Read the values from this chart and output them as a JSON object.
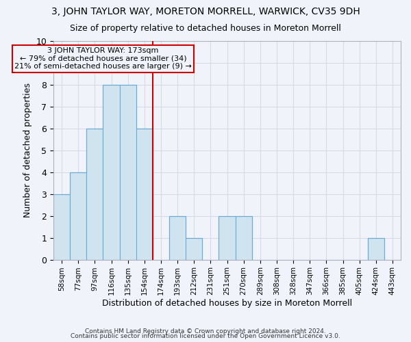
{
  "title1": "3, JOHN TAYLOR WAY, MORETON MORRELL, WARWICK, CV35 9DH",
  "title2": "Size of property relative to detached houses in Moreton Morrell",
  "xlabel": "Distribution of detached houses by size in Moreton Morrell",
  "ylabel": "Number of detached properties",
  "categories": [
    "58sqm",
    "77sqm",
    "97sqm",
    "116sqm",
    "135sqm",
    "154sqm",
    "174sqm",
    "193sqm",
    "212sqm",
    "231sqm",
    "251sqm",
    "270sqm",
    "289sqm",
    "308sqm",
    "328sqm",
    "347sqm",
    "366sqm",
    "385sqm",
    "405sqm",
    "424sqm",
    "443sqm"
  ],
  "values": [
    3,
    4,
    6,
    8,
    8,
    6,
    0,
    2,
    1,
    0,
    2,
    2,
    0,
    0,
    0,
    0,
    0,
    0,
    0,
    1,
    0
  ],
  "bar_color": "#d0e4f0",
  "bar_edge_color": "#6aaad4",
  "vline_index": 6,
  "vline_color": "#cc0000",
  "annotation_line1": "3 JOHN TAYLOR WAY: 173sqm",
  "annotation_line2": "← 79% of detached houses are smaller (34)",
  "annotation_line3": "21% of semi-detached houses are larger (9) →",
  "annotation_box_color": "#cc0000",
  "ylim": [
    0,
    10
  ],
  "yticks": [
    0,
    1,
    2,
    3,
    4,
    5,
    6,
    7,
    8,
    9,
    10
  ],
  "footer1": "Contains HM Land Registry data © Crown copyright and database right 2024.",
  "footer2": "Contains public sector information licensed under the Open Government Licence v3.0.",
  "bg_color": "#f0f4fa",
  "plot_bg_color": "#f0f4fa",
  "grid_color": "#d8d8e8"
}
